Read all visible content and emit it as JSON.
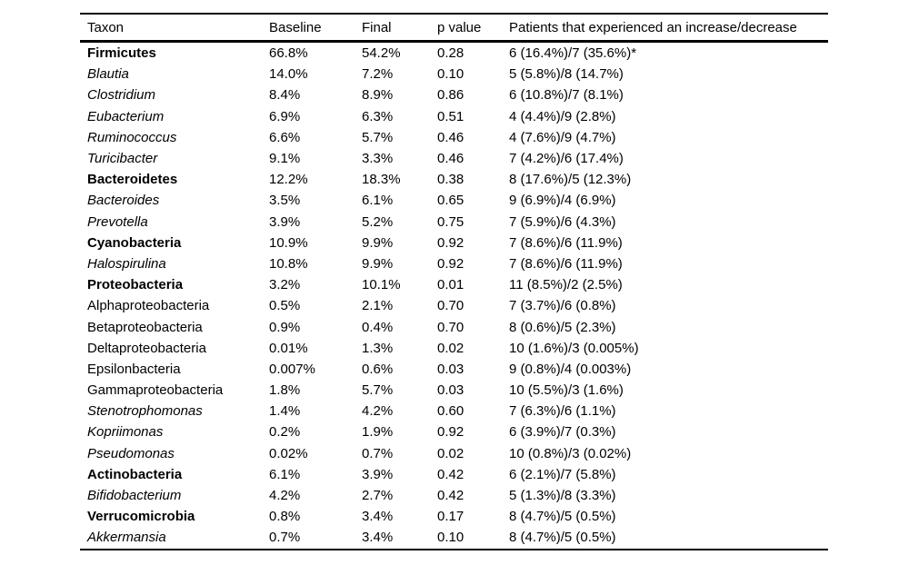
{
  "colors": {
    "background": "#ffffff",
    "text": "#000000",
    "rule": "#000000"
  },
  "table": {
    "columns": [
      {
        "key": "taxon",
        "label": "Taxon"
      },
      {
        "key": "baseline",
        "label": "Baseline"
      },
      {
        "key": "final",
        "label": "Final"
      },
      {
        "key": "p_value",
        "label": "p value"
      },
      {
        "key": "patients",
        "label": "Patients that experienced an increase/decrease"
      }
    ],
    "rows": [
      {
        "taxon": "Firmicutes",
        "style": "bold",
        "baseline": "66.8%",
        "final": "54.2%",
        "p_value": "0.28",
        "patients": "6 (16.4%)/7 (35.6%)*"
      },
      {
        "taxon": "Blautia",
        "style": "italic",
        "baseline": "14.0%",
        "final": "7.2%",
        "p_value": "0.10",
        "patients": "5 (5.8%)/8 (14.7%)"
      },
      {
        "taxon": "Clostridium",
        "style": "italic",
        "baseline": "8.4%",
        "final": "8.9%",
        "p_value": "0.86",
        "patients": "6 (10.8%)/7 (8.1%)"
      },
      {
        "taxon": "Eubacterium",
        "style": "italic",
        "baseline": "6.9%",
        "final": "6.3%",
        "p_value": "0.51",
        "patients": "4 (4.4%)/9 (2.8%)"
      },
      {
        "taxon": "Ruminococcus",
        "style": "italic",
        "baseline": "6.6%",
        "final": "5.7%",
        "p_value": "0.46",
        "patients": "4 (7.6%)/9 (4.7%)"
      },
      {
        "taxon": "Turicibacter",
        "style": "italic",
        "baseline": "9.1%",
        "final": "3.3%",
        "p_value": "0.46",
        "patients": "7 (4.2%)/6 (17.4%)"
      },
      {
        "taxon": "Bacteroidetes",
        "style": "bold",
        "baseline": "12.2%",
        "final": "18.3%",
        "p_value": "0.38",
        "patients": "8 (17.6%)/5 (12.3%)"
      },
      {
        "taxon": "Bacteroides",
        "style": "italic",
        "baseline": "3.5%",
        "final": "6.1%",
        "p_value": "0.65",
        "patients": "9 (6.9%)/4 (6.9%)"
      },
      {
        "taxon": "Prevotella",
        "style": "italic",
        "baseline": "3.9%",
        "final": "5.2%",
        "p_value": "0.75",
        "patients": "7 (5.9%)/6 (4.3%)"
      },
      {
        "taxon": "Cyanobacteria",
        "style": "bold",
        "baseline": "10.9%",
        "final": "9.9%",
        "p_value": "0.92",
        "patients": "7 (8.6%)/6 (11.9%)"
      },
      {
        "taxon": "Halospirulina",
        "style": "italic",
        "baseline": "10.8%",
        "final": "9.9%",
        "p_value": "0.92",
        "patients": "7 (8.6%)/6 (11.9%)"
      },
      {
        "taxon": "Proteobacteria",
        "style": "bold",
        "baseline": "3.2%",
        "final": "10.1%",
        "p_value": "0.01",
        "patients": "11 (8.5%)/2 (2.5%)"
      },
      {
        "taxon": "Alphaproteobacteria",
        "style": "regular",
        "baseline": "0.5%",
        "final": "2.1%",
        "p_value": "0.70",
        "patients": "7 (3.7%)/6 (0.8%)"
      },
      {
        "taxon": "Betaproteobacteria",
        "style": "regular",
        "baseline": "0.9%",
        "final": "0.4%",
        "p_value": "0.70",
        "patients": "8 (0.6%)/5 (2.3%)"
      },
      {
        "taxon": "Deltaproteobacteria",
        "style": "regular",
        "baseline": "0.01%",
        "final": "1.3%",
        "p_value": "0.02",
        "patients": "10 (1.6%)/3 (0.005%)"
      },
      {
        "taxon": "Epsilonbacteria",
        "style": "regular",
        "baseline": "0.007%",
        "final": "0.6%",
        "p_value": "0.03",
        "patients": "9 (0.8%)/4 (0.003%)"
      },
      {
        "taxon": "Gammaproteobacteria",
        "style": "regular",
        "baseline": "1.8%",
        "final": "5.7%",
        "p_value": "0.03",
        "patients": "10 (5.5%)/3 (1.6%)"
      },
      {
        "taxon": "Stenotrophomonas",
        "style": "italic",
        "baseline": "1.4%",
        "final": "4.2%",
        "p_value": "0.60",
        "patients": "7 (6.3%)/6 (1.1%)"
      },
      {
        "taxon": "Kopriimonas",
        "style": "italic",
        "baseline": "0.2%",
        "final": "1.9%",
        "p_value": "0.92",
        "patients": "6 (3.9%)/7 (0.3%)"
      },
      {
        "taxon": "Pseudomonas",
        "style": "italic",
        "baseline": "0.02%",
        "final": "0.7%",
        "p_value": "0.02",
        "patients": "10 (0.8%)/3 (0.02%)"
      },
      {
        "taxon": "Actinobacteria",
        "style": "bold",
        "baseline": "6.1%",
        "final": "3.9%",
        "p_value": "0.42",
        "patients": "6 (2.1%)/7 (5.8%)"
      },
      {
        "taxon": "Bifidobacterium",
        "style": "italic",
        "baseline": "4.2%",
        "final": "2.7%",
        "p_value": "0.42",
        "patients": "5 (1.3%)/8 (3.3%)"
      },
      {
        "taxon": "Verrucomicrobia",
        "style": "bold",
        "baseline": "0.8%",
        "final": "3.4%",
        "p_value": "0.17",
        "patients": "8 (4.7%)/5 (0.5%)"
      },
      {
        "taxon": "Akkermansia",
        "style": "italic",
        "baseline": "0.7%",
        "final": "3.4%",
        "p_value": "0.10",
        "patients": "8 (4.7%)/5 (0.5%)"
      }
    ]
  }
}
